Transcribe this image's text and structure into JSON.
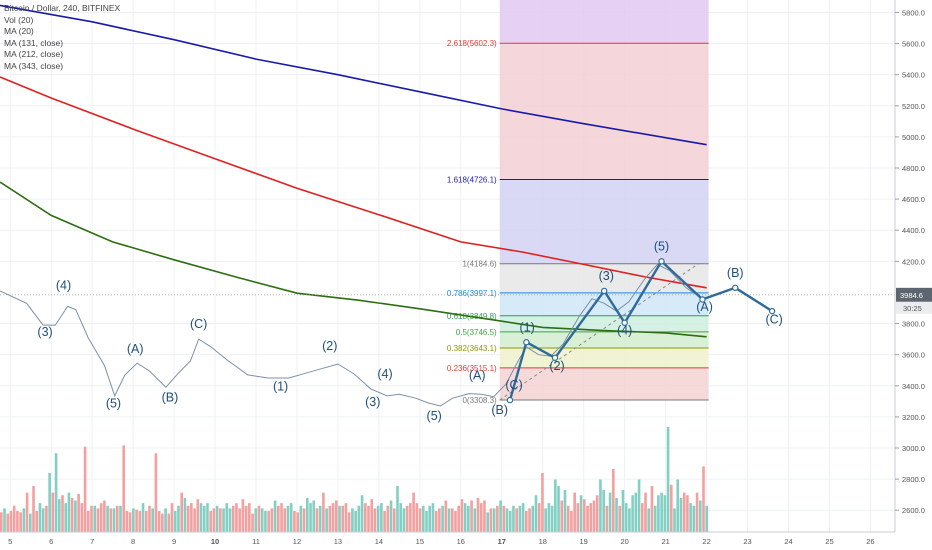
{
  "legend": {
    "title": "Bitcoin / Dollar, 240, BITFINEX",
    "studies": [
      "Vol (20)",
      "MA (20)",
      "MA (131, close)",
      "MA (212, close)",
      "MA (343, close)"
    ]
  },
  "price_axis": {
    "ticks": [
      "5800.0",
      "5600.0",
      "5400.0",
      "5200.0",
      "5000.0",
      "4800.0",
      "4600.0",
      "4400.0",
      "4200.0",
      "3800.0",
      "3600.0",
      "3400.0",
      "3200.0",
      "3000.0",
      "2800.0",
      "2600.0"
    ],
    "current_price": "3984.6",
    "countdown": "30:25"
  },
  "time_axis": {
    "ticks": [
      "5",
      "6",
      "7",
      "8",
      "9",
      "10",
      "11",
      "12",
      "13",
      "14",
      "15",
      "16",
      "17",
      "18",
      "19",
      "20",
      "21",
      "22",
      "23",
      "24",
      "25",
      "26"
    ]
  },
  "fib_levels": [
    {
      "label": "2.618(5602.3)",
      "price": 5602.3,
      "color": "#e53935"
    },
    {
      "label": "1.618(4726.1)",
      "price": 4726.1,
      "color": "#1a1ab0"
    },
    {
      "label": "1(4184.6)",
      "price": 4184.6,
      "color": "#787878"
    },
    {
      "label": "0.786(3997.1)",
      "price": 3997.1,
      "color": "#1e88e5"
    },
    {
      "label": "0.618(3849.8)",
      "price": 3849.8,
      "color": "#2e9e4e"
    },
    {
      "label": "0.5(3746.5)",
      "price": 3746.5,
      "color": "#43a047"
    },
    {
      "label": "0.382(3643.1)",
      "price": 3643.1,
      "color": "#8a9a00"
    },
    {
      "label": "0.236(3515.1)",
      "price": 3515.1,
      "color": "#e53935"
    },
    {
      "label": "0(3308.3)",
      "price": 3308.3,
      "color": "#787878"
    }
  ],
  "chart_data": {
    "type": "line",
    "ylim": [
      2460,
      5880
    ],
    "xlim": [
      4.75,
      26.6
    ],
    "series": [
      {
        "name": "MA (131, close)",
        "color": "#1a1aaa",
        "points": [
          [
            4.75,
            5845
          ],
          [
            7,
            5740
          ],
          [
            9,
            5625
          ],
          [
            11,
            5500
          ],
          [
            13,
            5400
          ],
          [
            15,
            5290
          ],
          [
            17,
            5180
          ],
          [
            19,
            5085
          ],
          [
            21,
            4995
          ],
          [
            22,
            4950
          ]
        ]
      },
      {
        "name": "MA (212, close)",
        "color": "#e21f1f",
        "points": [
          [
            4.75,
            5385
          ],
          [
            6,
            5250
          ],
          [
            8,
            5050
          ],
          [
            10,
            4860
          ],
          [
            12,
            4670
          ],
          [
            14,
            4500
          ],
          [
            16,
            4325
          ],
          [
            17.5,
            4260
          ],
          [
            19,
            4180
          ],
          [
            20.5,
            4100
          ],
          [
            22,
            4030
          ]
        ]
      },
      {
        "name": "MA (343, close)",
        "color": "#2e6e12",
        "points": [
          [
            4.75,
            4710
          ],
          [
            6,
            4495
          ],
          [
            7.5,
            4325
          ],
          [
            9,
            4210
          ],
          [
            10.5,
            4100
          ],
          [
            12,
            3995
          ],
          [
            13.5,
            3950
          ],
          [
            15,
            3895
          ],
          [
            17,
            3815
          ],
          [
            18,
            3775
          ],
          [
            19.5,
            3755
          ],
          [
            21,
            3740
          ],
          [
            22,
            3715
          ]
        ]
      },
      {
        "name": "",
        "color": "#7b90a8",
        "points": [
          [
            4.75,
            4010
          ],
          [
            5.4,
            3930
          ],
          [
            5.8,
            3790
          ],
          [
            6.1,
            3790
          ],
          [
            6.4,
            3910
          ],
          [
            6.6,
            3890
          ],
          [
            6.9,
            3710
          ],
          [
            7.3,
            3530
          ],
          [
            7.55,
            3335
          ],
          [
            7.8,
            3470
          ],
          [
            8.1,
            3545
          ],
          [
            8.4,
            3495
          ],
          [
            8.8,
            3390
          ],
          [
            9.1,
            3480
          ],
          [
            9.4,
            3560
          ],
          [
            9.6,
            3700
          ],
          [
            9.9,
            3650
          ],
          [
            10.3,
            3565
          ],
          [
            10.8,
            3470
          ],
          [
            11.3,
            3450
          ],
          [
            11.8,
            3450
          ],
          [
            12.2,
            3480
          ],
          [
            12.6,
            3510
          ],
          [
            13,
            3540
          ],
          [
            13.4,
            3475
          ],
          [
            13.8,
            3380
          ],
          [
            14.2,
            3335
          ],
          [
            14.5,
            3345
          ],
          [
            14.9,
            3320
          ],
          [
            15.2,
            3290
          ],
          [
            15.5,
            3270
          ],
          [
            15.8,
            3320
          ],
          [
            16.2,
            3350
          ],
          [
            16.5,
            3345
          ],
          [
            16.8,
            3330
          ],
          [
            17.1,
            3410
          ],
          [
            17.4,
            3560
          ],
          [
            17.6,
            3650
          ],
          [
            17.9,
            3600
          ],
          [
            18.2,
            3590
          ],
          [
            18.5,
            3670
          ],
          [
            18.9,
            3850
          ],
          [
            19.2,
            3960
          ],
          [
            19.5,
            3930
          ],
          [
            19.8,
            3880
          ],
          [
            20.1,
            3940
          ],
          [
            20.5,
            4090
          ],
          [
            20.8,
            4180
          ],
          [
            21.1,
            4140
          ],
          [
            21.5,
            4030
          ],
          [
            21.9,
            3960
          ]
        ]
      },
      {
        "name": "",
        "color": "#2f6b9a",
        "points": [
          [
            17.2,
            3308
          ],
          [
            17.6,
            3680
          ],
          [
            18.3,
            3580
          ],
          [
            19.5,
            4010
          ],
          [
            20.0,
            3805
          ],
          [
            20.9,
            4200
          ],
          [
            21.9,
            3955
          ],
          [
            22.7,
            4030
          ],
          [
            23.6,
            3880
          ]
        ]
      }
    ],
    "volume": [
      15,
      18,
      14,
      16,
      20,
      16,
      15,
      18,
      30,
      14,
      35,
      16,
      22,
      18,
      20,
      45,
      30,
      60,
      25,
      28,
      22,
      30,
      26,
      24,
      29,
      22,
      65,
      16,
      20,
      20,
      18,
      22,
      24,
      20,
      18,
      18,
      20,
      20,
      66,
      16,
      15,
      18,
      17,
      16,
      22,
      16,
      20,
      18,
      60,
      16,
      14,
      18,
      14,
      22,
      16,
      20,
      30,
      26,
      20,
      22,
      18,
      25,
      22,
      20,
      22,
      16,
      18,
      20,
      18,
      18,
      22,
      18,
      20,
      22,
      18,
      25,
      20,
      22,
      14,
      18,
      20,
      18,
      16,
      16,
      18,
      24,
      20,
      22,
      18,
      20,
      22,
      16,
      15,
      20,
      18,
      26,
      22,
      24,
      18,
      20,
      30,
      18,
      20,
      22,
      24,
      20,
      20,
      22,
      15,
      18,
      16,
      20,
      28,
      22,
      20,
      25,
      18,
      20,
      22,
      16,
      20,
      24,
      18,
      35,
      22,
      18,
      20,
      22,
      30,
      22,
      18,
      20,
      16,
      20,
      22,
      16,
      18,
      20,
      24,
      18,
      18,
      16,
      20,
      25,
      22,
      20,
      24,
      18,
      26,
      22,
      24,
      15,
      18,
      18,
      20,
      24,
      20,
      18,
      16,
      20,
      18,
      20,
      22,
      16,
      18,
      20,
      28,
      22,
      45,
      18,
      22,
      20,
      40,
      35,
      24,
      32,
      20,
      16,
      30,
      22,
      28,
      25,
      20,
      22,
      24,
      28,
      40,
      32,
      20,
      30,
      48,
      26,
      20,
      32,
      22,
      18,
      28,
      30,
      40,
      22,
      30,
      18,
      35,
      20,
      28,
      30,
      28,
      80,
      36,
      18,
      40,
      26,
      30,
      28,
      22,
      20,
      30,
      24,
      50,
      20
    ],
    "volume_colors": [
      "#f2a0a0",
      "#83cfc3"
    ]
  },
  "wave_labels": [
    {
      "text": "(4)",
      "x": 6.3,
      "price": 4020
    },
    {
      "text": "(3)",
      "x": 5.85,
      "price": 3720
    },
    {
      "text": "(5)",
      "x": 7.52,
      "price": 3260
    },
    {
      "text": "(A)",
      "x": 8.05,
      "price": 3610
    },
    {
      "text": "(B)",
      "x": 8.9,
      "price": 3300
    },
    {
      "text": "(C)",
      "x": 9.6,
      "price": 3770
    },
    {
      "text": "(1)",
      "x": 11.6,
      "price": 3370
    },
    {
      "text": "(2)",
      "x": 12.8,
      "price": 3630
    },
    {
      "text": "(3)",
      "x": 13.85,
      "price": 3270
    },
    {
      "text": "(4)",
      "x": 14.15,
      "price": 3450
    },
    {
      "text": "(5)",
      "x": 15.35,
      "price": 3180
    },
    {
      "text": "(A)",
      "x": 16.4,
      "price": 3440
    },
    {
      "text": "(B)",
      "x": 16.95,
      "price": 3220
    },
    {
      "text": "(C)",
      "x": 17.3,
      "price": 3380
    },
    {
      "text": "(1)",
      "x": 17.62,
      "price": 3750
    },
    {
      "text": "(2)",
      "x": 18.35,
      "price": 3500
    },
    {
      "text": "(3)",
      "x": 19.55,
      "price": 4080
    },
    {
      "text": "(4)",
      "x": 20.0,
      "price": 3730
    },
    {
      "text": "(5)",
      "x": 20.9,
      "price": 4270
    },
    {
      "text": "(A)",
      "x": 21.95,
      "price": 3880
    },
    {
      "text": "(B)",
      "x": 22.7,
      "price": 4100
    },
    {
      "text": "(C)",
      "x": 23.65,
      "price": 3800
    }
  ]
}
